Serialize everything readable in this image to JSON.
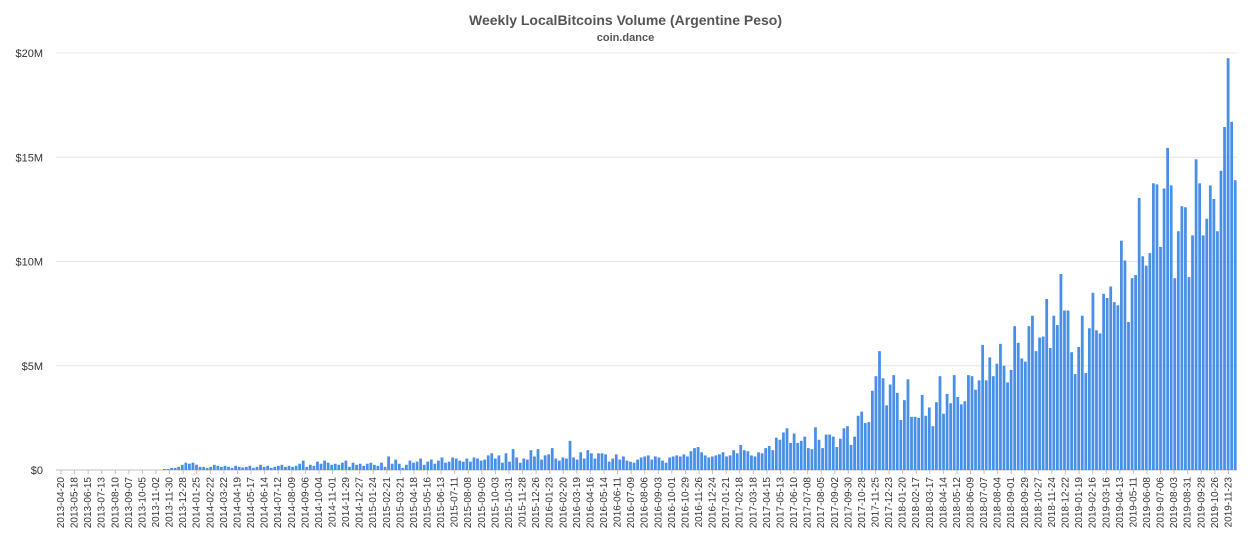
{
  "title": "Weekly LocalBitcoins Volume (Argentine Peso)",
  "subtitle": "coin.dance",
  "chart_data": {
    "type": "bar",
    "title": "Weekly LocalBitcoins Volume (Argentine Peso)",
    "subtitle": "coin.dance",
    "ylim": [
      0,
      20000000
    ],
    "y_ticks": [
      0,
      5000000,
      10000000,
      15000000,
      20000000
    ],
    "y_tick_labels": [
      "$0",
      "$5M",
      "$10M",
      "$15M",
      "$20M"
    ],
    "x_tick_labels": [
      "2013-04-20",
      "2013-05-18",
      "2013-06-15",
      "2013-07-13",
      "2013-08-10",
      "2013-09-07",
      "2013-10-05",
      "2013-11-02",
      "2013-11-30",
      "2013-12-28",
      "2014-01-25",
      "2014-02-22",
      "2014-03-22",
      "2014-04-19",
      "2014-05-17",
      "2014-06-14",
      "2014-07-12",
      "2014-08-09",
      "2014-09-06",
      "2014-10-04",
      "2014-11-01",
      "2014-11-29",
      "2014-12-27",
      "2015-01-24",
      "2015-02-21",
      "2015-03-21",
      "2015-04-18",
      "2015-05-16",
      "2015-06-13",
      "2015-07-11",
      "2015-08-08",
      "2015-09-05",
      "2015-10-03",
      "2015-10-31",
      "2015-11-28",
      "2015-12-26",
      "2016-01-23",
      "2016-02-20",
      "2016-03-19",
      "2016-04-16",
      "2016-05-14",
      "2016-06-11",
      "2016-07-09",
      "2016-08-06",
      "2016-09-03",
      "2016-10-01",
      "2016-10-29",
      "2016-11-26",
      "2016-12-24",
      "2017-01-21",
      "2017-02-18",
      "2017-03-18",
      "2017-04-15",
      "2017-05-13",
      "2017-06-10",
      "2017-07-08",
      "2017-08-05",
      "2017-09-02",
      "2017-09-30",
      "2017-10-28",
      "2017-11-25",
      "2017-12-23",
      "2018-01-20",
      "2018-02-17",
      "2018-03-17",
      "2018-04-14",
      "2018-05-12",
      "2018-06-09",
      "2018-07-07",
      "2018-08-04",
      "2018-09-01",
      "2018-09-29",
      "2018-10-27",
      "2018-11-24",
      "2018-12-22",
      "2019-01-19",
      "2019-02-16",
      "2019-03-16",
      "2019-04-13",
      "2019-05-11",
      "2019-06-08",
      "2019-07-06",
      "2019-08-03",
      "2019-08-31",
      "2019-09-28",
      "2019-10-26",
      "2019-11-23"
    ],
    "values": [
      0,
      0,
      0,
      0,
      0,
      0,
      0,
      0,
      0,
      0,
      0,
      0,
      0,
      0,
      0,
      0,
      0,
      0,
      0,
      0,
      0,
      0,
      0,
      0,
      0,
      0,
      0,
      0,
      0,
      0,
      0.05,
      0.05,
      0.1,
      0.1,
      0.15,
      0.25,
      0.35,
      0.3,
      0.35,
      0.25,
      0.15,
      0.15,
      0.1,
      0.15,
      0.25,
      0.2,
      0.15,
      0.2,
      0.15,
      0.1,
      0.2,
      0.15,
      0.12,
      0.15,
      0.2,
      0.1,
      0.15,
      0.25,
      0.15,
      0.2,
      0.1,
      0.15,
      0.2,
      0.25,
      0.15,
      0.2,
      0.15,
      0.2,
      0.3,
      0.45,
      0.15,
      0.25,
      0.2,
      0.4,
      0.3,
      0.45,
      0.35,
      0.25,
      0.3,
      0.25,
      0.35,
      0.45,
      0.15,
      0.35,
      0.25,
      0.3,
      0.2,
      0.3,
      0.35,
      0.25,
      0.2,
      0.35,
      0.15,
      0.65,
      0.3,
      0.5,
      0.3,
      0.1,
      0.25,
      0.45,
      0.35,
      0.4,
      0.55,
      0.25,
      0.4,
      0.5,
      0.3,
      0.45,
      0.6,
      0.35,
      0.4,
      0.6,
      0.55,
      0.45,
      0.4,
      0.55,
      0.4,
      0.6,
      0.55,
      0.45,
      0.5,
      0.7,
      0.8,
      0.55,
      0.7,
      0.35,
      0.8,
      0.4,
      1.0,
      0.6,
      0.35,
      0.55,
      0.5,
      0.95,
      0.65,
      1.0,
      0.5,
      0.7,
      0.75,
      1.05,
      0.55,
      0.45,
      0.6,
      0.55,
      1.4,
      0.6,
      0.5,
      0.85,
      0.55,
      0.95,
      0.8,
      0.55,
      0.8,
      0.8,
      0.75,
      0.4,
      0.55,
      0.75,
      0.5,
      0.65,
      0.45,
      0.4,
      0.35,
      0.5,
      0.6,
      0.65,
      0.7,
      0.5,
      0.65,
      0.6,
      0.45,
      0.35,
      0.6,
      0.65,
      0.7,
      0.65,
      0.75,
      0.65,
      0.9,
      1.05,
      1.1,
      0.85,
      0.7,
      0.6,
      0.65,
      0.7,
      0.75,
      0.85,
      0.65,
      0.7,
      0.95,
      0.8,
      1.2,
      0.95,
      0.9,
      0.7,
      0.65,
      0.85,
      0.8,
      1.05,
      1.15,
      0.95,
      1.55,
      1.45,
      1.8,
      2.0,
      1.3,
      1.75,
      1.3,
      1.4,
      1.6,
      1.05,
      1.0,
      2.05,
      1.45,
      1.05,
      1.7,
      1.7,
      1.6,
      1.1,
      1.5,
      2.0,
      2.1,
      1.2,
      1.6,
      2.6,
      2.8,
      2.25,
      2.3,
      3.8,
      4.5,
      5.7,
      4.4,
      3.1,
      4.1,
      4.55,
      3.7,
      2.4,
      3.35,
      4.35,
      2.55,
      2.55,
      2.5,
      3.6,
      2.6,
      3.0,
      2.1,
      3.25,
      4.5,
      2.7,
      3.65,
      3.2,
      4.55,
      3.5,
      3.15,
      3.3,
      4.55,
      4.5,
      3.85,
      4.3,
      6.0,
      4.3,
      5.4,
      4.5,
      5.1,
      6.05,
      5.0,
      4.2,
      4.8,
      6.9,
      6.1,
      5.35,
      5.2,
      6.9,
      7.4,
      5.7,
      6.35,
      6.4,
      8.2,
      5.85,
      7.4,
      6.95,
      9.4,
      7.65,
      7.65,
      5.65,
      4.6,
      5.9,
      7.4,
      4.65,
      6.8,
      8.5,
      6.7,
      6.55,
      8.45,
      8.25,
      8.8,
      8.05,
      7.9,
      11.0,
      10.05,
      7.1,
      9.2,
      9.35,
      13.05,
      10.25,
      9.8,
      10.4,
      13.75,
      13.7,
      10.7,
      13.5,
      15.45,
      13.65,
      9.2,
      11.45,
      12.65,
      12.6,
      9.25,
      11.25,
      14.9,
      13.75,
      11.25,
      12.05,
      13.65,
      13.0,
      11.45,
      14.35,
      16.45,
      19.75,
      16.7,
      13.9
    ]
  }
}
